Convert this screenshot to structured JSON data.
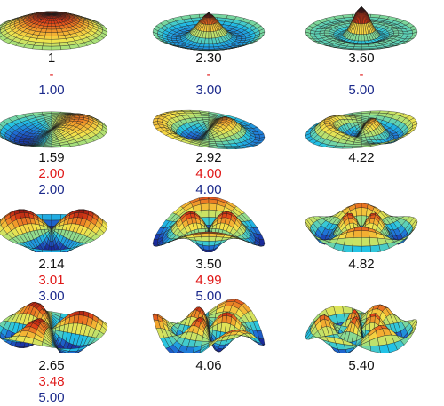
{
  "colors": {
    "first_value": "#111111",
    "second_value": "#e01818",
    "third_value": "#1c2a8c",
    "surface_colormap": [
      "#1a2a9c",
      "#1f6fd6",
      "#22c3e6",
      "#a6e07a",
      "#f5e44a",
      "#f2a12c",
      "#e04218",
      "#8f1010"
    ],
    "mesh_lines": "#1a1a1a"
  },
  "grid": [
    {
      "row": 0,
      "col": 0,
      "shape": "bell-dome",
      "v1": "1",
      "v2": "-",
      "v3": "1.00"
    },
    {
      "row": 0,
      "col": 1,
      "shape": "peak-with-trough",
      "v1": "2.30",
      "v2": "-",
      "v3": "3.00"
    },
    {
      "row": 0,
      "col": 2,
      "shape": "peak-with-two-rings",
      "v1": "3.60",
      "v2": "-",
      "v3": "5.00"
    },
    {
      "row": 1,
      "col": 0,
      "shape": "twisted-saddle",
      "v1": "1.59",
      "v2": "2.00",
      "v3": "2.00"
    },
    {
      "row": 1,
      "col": 1,
      "shape": "twisted-saddle-ring",
      "v1": "2.92",
      "v2": "4.00",
      "v3": "4.00"
    },
    {
      "row": 1,
      "col": 2,
      "shape": "twisted-saddle-rings",
      "v1": "4.22",
      "v2": "",
      "v3": ""
    },
    {
      "row": 2,
      "col": 0,
      "shape": "four-lobe",
      "v1": "2.14",
      "v2": "3.01",
      "v3": "3.00"
    },
    {
      "row": 2,
      "col": 1,
      "shape": "four-lobe-ring",
      "v1": "3.50",
      "v2": "4.99",
      "v3": "5.00"
    },
    {
      "row": 2,
      "col": 2,
      "shape": "four-lobe-rings",
      "v1": "4.82",
      "v2": "",
      "v3": ""
    },
    {
      "row": 3,
      "col": 0,
      "shape": "six-lobe",
      "v1": "2.65",
      "v2": "3.48",
      "v3": "5.00"
    },
    {
      "row": 3,
      "col": 1,
      "shape": "six-lobe-ring",
      "v1": "4.06",
      "v2": "",
      "v3": ""
    },
    {
      "row": 3,
      "col": 2,
      "shape": "six-lobe-rings",
      "v1": "5.40",
      "v2": "",
      "v3": ""
    }
  ]
}
